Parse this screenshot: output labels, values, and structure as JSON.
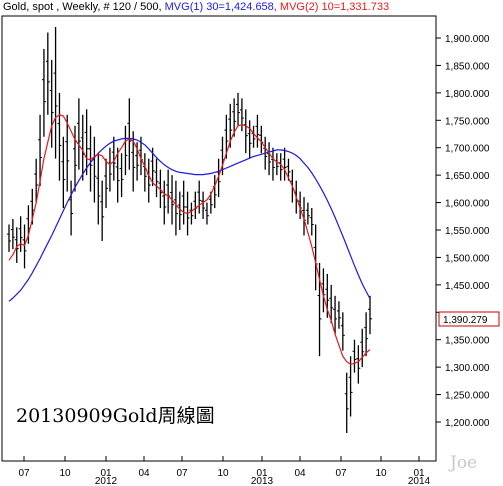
{
  "header": {
    "instrument": "Gold, spot , Weekly, # 120 / 500,",
    "mvg1": "MVG(1) 30=1,424.658,",
    "mvg2": "MVG(2) 10=1,331.733"
  },
  "colors": {
    "mvg1": "#1a1ae6",
    "mvg2": "#e61a1a",
    "bars": "#000000",
    "background": "#ffffff",
    "price_box": "#cc0000"
  },
  "chart_data": {
    "type": "ohlc",
    "yticks": [
      "1,900.000",
      "1,850.000",
      "1,800.000",
      "1,750.000",
      "1,700.000",
      "1,650.000",
      "1,600.000",
      "1,550.000",
      "1,500.000",
      "1,450.000",
      "1,400.000",
      "1,350.000",
      "1,300.000",
      "1,250.000",
      "1,200.000"
    ],
    "ylim": [
      1170,
      1920
    ],
    "x_month_labels": [
      "07",
      "10",
      "01",
      "04",
      "07",
      "10",
      "01",
      "04",
      "07",
      "10",
      "01"
    ],
    "x_year_labels": [
      "2012",
      "2013",
      "2014"
    ],
    "last_price_label": "1,390.279",
    "annotation": "20130909Gold周線圖",
    "watermark": "Joe",
    "series": [
      {
        "name": "MVG(1) 30",
        "values": [
          1420,
          1426,
          1433,
          1440,
          1450,
          1460,
          1472,
          1485,
          1498,
          1512,
          1526,
          1540,
          1555,
          1570,
          1585,
          1600,
          1614,
          1628,
          1640,
          1652,
          1663,
          1673,
          1682,
          1690,
          1697,
          1703,
          1708,
          1712,
          1714,
          1716,
          1717,
          1717,
          1716,
          1714,
          1710,
          1705,
          1698,
          1690,
          1682,
          1675,
          1669,
          1664,
          1660,
          1657,
          1655,
          1654,
          1653,
          1652,
          1651,
          1651,
          1651,
          1652,
          1653,
          1655,
          1657,
          1660,
          1663,
          1666,
          1669,
          1672,
          1675,
          1678,
          1681,
          1684,
          1686,
          1688,
          1690,
          1692,
          1694,
          1696,
          1696,
          1695,
          1693,
          1690,
          1686,
          1680,
          1672,
          1664,
          1654,
          1643,
          1631,
          1618,
          1604,
          1589,
          1573,
          1556,
          1539,
          1521,
          1503,
          1485,
          1468,
          1452,
          1438,
          1425
        ]
      },
      {
        "name": "MVG(2) 10",
        "values": [
          1495,
          1505,
          1520,
          1525,
          1522,
          1540,
          1570,
          1600,
          1640,
          1680,
          1710,
          1740,
          1755,
          1760,
          1758,
          1745,
          1730,
          1715,
          1705,
          1695,
          1680,
          1678,
          1684,
          1688,
          1685,
          1675,
          1670,
          1675,
          1690,
          1700,
          1712,
          1716,
          1712,
          1698,
          1680,
          1666,
          1650,
          1636,
          1630,
          1624,
          1616,
          1612,
          1605,
          1596,
          1588,
          1582,
          1580,
          1584,
          1590,
          1595,
          1600,
          1605,
          1615,
          1630,
          1648,
          1668,
          1690,
          1712,
          1728,
          1740,
          1742,
          1740,
          1735,
          1726,
          1718,
          1711,
          1700,
          1690,
          1680,
          1674,
          1670,
          1660,
          1645,
          1630,
          1610,
          1590,
          1570,
          1545,
          1520,
          1490,
          1460,
          1430,
          1405,
          1385,
          1360,
          1340,
          1320,
          1310,
          1305,
          1307,
          1310,
          1318,
          1326,
          1332
        ]
      }
    ],
    "ohlc": [
      {
        "h": 1560,
        "l": 1510
      },
      {
        "h": 1570,
        "l": 1515
      },
      {
        "h": 1555,
        "l": 1490
      },
      {
        "h": 1575,
        "l": 1510
      },
      {
        "h": 1560,
        "l": 1480
      },
      {
        "h": 1595,
        "l": 1525
      },
      {
        "h": 1625,
        "l": 1560
      },
      {
        "h": 1680,
        "l": 1600
      },
      {
        "h": 1760,
        "l": 1630
      },
      {
        "h": 1880,
        "l": 1720
      },
      {
        "h": 1910,
        "l": 1760
      },
      {
        "h": 1860,
        "l": 1700
      },
      {
        "h": 1920,
        "l": 1680
      },
      {
        "h": 1800,
        "l": 1640
      },
      {
        "h": 1720,
        "l": 1590
      },
      {
        "h": 1760,
        "l": 1620
      },
      {
        "h": 1640,
        "l": 1540
      },
      {
        "h": 1740,
        "l": 1620
      },
      {
        "h": 1790,
        "l": 1660
      },
      {
        "h": 1760,
        "l": 1640
      },
      {
        "h": 1770,
        "l": 1650
      },
      {
        "h": 1740,
        "l": 1620
      },
      {
        "h": 1720,
        "l": 1600
      },
      {
        "h": 1690,
        "l": 1560
      },
      {
        "h": 1640,
        "l": 1530
      },
      {
        "h": 1680,
        "l": 1590
      },
      {
        "h": 1700,
        "l": 1620
      },
      {
        "h": 1720,
        "l": 1640
      },
      {
        "h": 1700,
        "l": 1600
      },
      {
        "h": 1690,
        "l": 1610
      },
      {
        "h": 1740,
        "l": 1650
      },
      {
        "h": 1790,
        "l": 1660
      },
      {
        "h": 1730,
        "l": 1620
      },
      {
        "h": 1710,
        "l": 1640
      },
      {
        "h": 1720,
        "l": 1650
      },
      {
        "h": 1690,
        "l": 1620
      },
      {
        "h": 1680,
        "l": 1600
      },
      {
        "h": 1700,
        "l": 1630
      },
      {
        "h": 1680,
        "l": 1610
      },
      {
        "h": 1660,
        "l": 1590
      },
      {
        "h": 1640,
        "l": 1560
      },
      {
        "h": 1660,
        "l": 1580
      },
      {
        "h": 1650,
        "l": 1560
      },
      {
        "h": 1640,
        "l": 1540
      },
      {
        "h": 1620,
        "l": 1550
      },
      {
        "h": 1640,
        "l": 1560
      },
      {
        "h": 1620,
        "l": 1540
      },
      {
        "h": 1600,
        "l": 1560
      },
      {
        "h": 1620,
        "l": 1570
      },
      {
        "h": 1640,
        "l": 1580
      },
      {
        "h": 1620,
        "l": 1570
      },
      {
        "h": 1600,
        "l": 1560
      },
      {
        "h": 1620,
        "l": 1580
      },
      {
        "h": 1650,
        "l": 1590
      },
      {
        "h": 1680,
        "l": 1610
      },
      {
        "h": 1720,
        "l": 1650
      },
      {
        "h": 1760,
        "l": 1680
      },
      {
        "h": 1780,
        "l": 1700
      },
      {
        "h": 1790,
        "l": 1720
      },
      {
        "h": 1800,
        "l": 1740
      },
      {
        "h": 1790,
        "l": 1730
      },
      {
        "h": 1770,
        "l": 1690
      },
      {
        "h": 1750,
        "l": 1680
      },
      {
        "h": 1740,
        "l": 1700
      },
      {
        "h": 1760,
        "l": 1700
      },
      {
        "h": 1740,
        "l": 1690
      },
      {
        "h": 1720,
        "l": 1660
      },
      {
        "h": 1710,
        "l": 1650
      },
      {
        "h": 1700,
        "l": 1640
      },
      {
        "h": 1690,
        "l": 1650
      },
      {
        "h": 1690,
        "l": 1640
      },
      {
        "h": 1700,
        "l": 1640
      },
      {
        "h": 1680,
        "l": 1640
      },
      {
        "h": 1660,
        "l": 1600
      },
      {
        "h": 1640,
        "l": 1580
      },
      {
        "h": 1620,
        "l": 1570
      },
      {
        "h": 1610,
        "l": 1540
      },
      {
        "h": 1600,
        "l": 1560
      },
      {
        "h": 1590,
        "l": 1540
      },
      {
        "h": 1560,
        "l": 1440
      },
      {
        "h": 1490,
        "l": 1320
      },
      {
        "h": 1480,
        "l": 1400
      },
      {
        "h": 1470,
        "l": 1390
      },
      {
        "h": 1450,
        "l": 1380
      },
      {
        "h": 1430,
        "l": 1360
      },
      {
        "h": 1420,
        "l": 1370
      },
      {
        "h": 1400,
        "l": 1330
      },
      {
        "h": 1290,
        "l": 1180
      },
      {
        "h": 1320,
        "l": 1210
      },
      {
        "h": 1350,
        "l": 1290
      },
      {
        "h": 1340,
        "l": 1270
      },
      {
        "h": 1370,
        "l": 1300
      },
      {
        "h": 1400,
        "l": 1320
      },
      {
        "h": 1430,
        "l": 1360
      }
    ]
  }
}
